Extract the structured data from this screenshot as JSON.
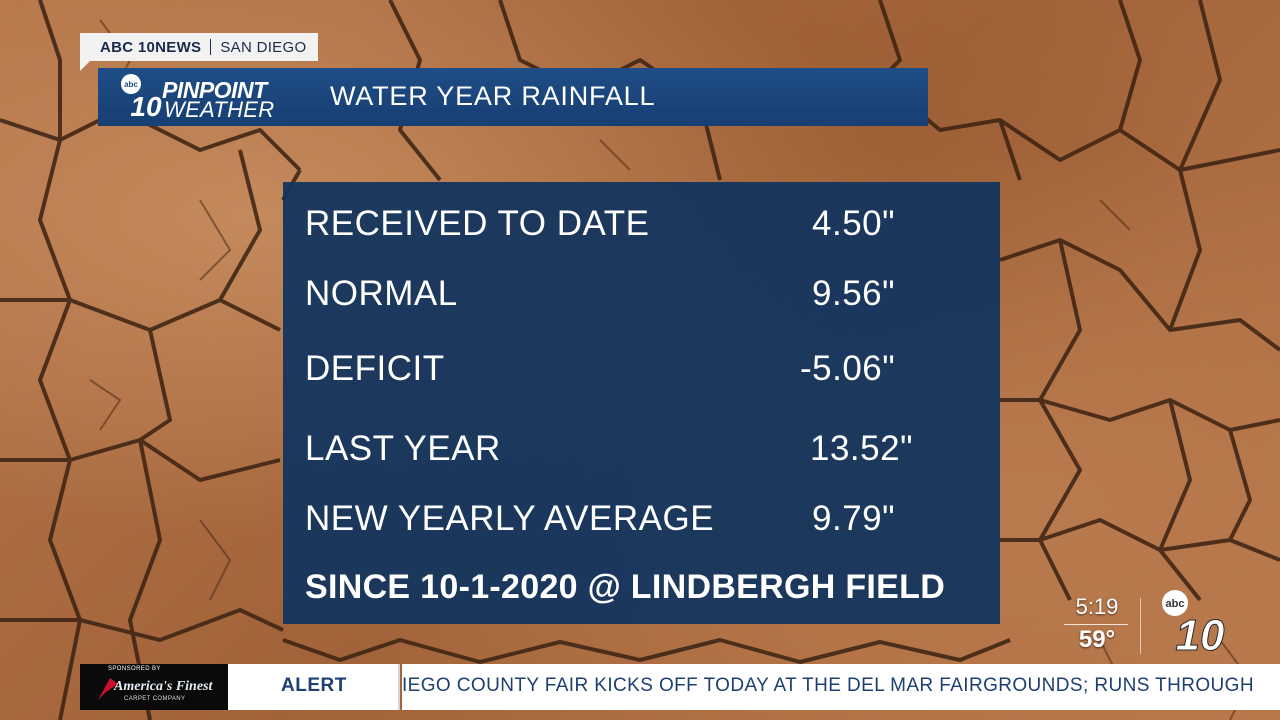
{
  "station": {
    "brand": "ABC 10NEWS",
    "city": "SAN DIEGO"
  },
  "header": {
    "logo_top": "PINPOINT",
    "logo_bottom": "WEATHER",
    "logo_badge": "abc",
    "logo_number": "10",
    "title": "WATER YEAR RAINFALL"
  },
  "rows": [
    {
      "label": "RECEIVED TO DATE",
      "value": "4.50\""
    },
    {
      "label": "NORMAL",
      "value": "9.56\""
    },
    {
      "label": "DEFICIT",
      "value": "-5.06\""
    },
    {
      "label": "LAST YEAR",
      "value": "13.52\""
    },
    {
      "label": "NEW YEARLY AVERAGE",
      "value": "9.79\""
    }
  ],
  "footnote": "SINCE 10-1-2020 @ LINDBERGH FIELD",
  "clock": {
    "time": "5:19",
    "temp": "59°"
  },
  "corner_logo": {
    "badge": "abc",
    "number": "10"
  },
  "ticker": {
    "sponsor_label": "SPONSORED BY",
    "sponsor_name": "America's Finest",
    "sponsor_sub": "CARPET COMPANY",
    "tag": "ALERT",
    "crawl": "IEGO COUNTY FAIR KICKS OFF TODAY AT THE DEL MAR FAIRGROUNDS; RUNS THROUGH"
  },
  "colors": {
    "panel": "#12345f",
    "header": "#1f4d86",
    "ticker_text": "#1d3f73"
  }
}
